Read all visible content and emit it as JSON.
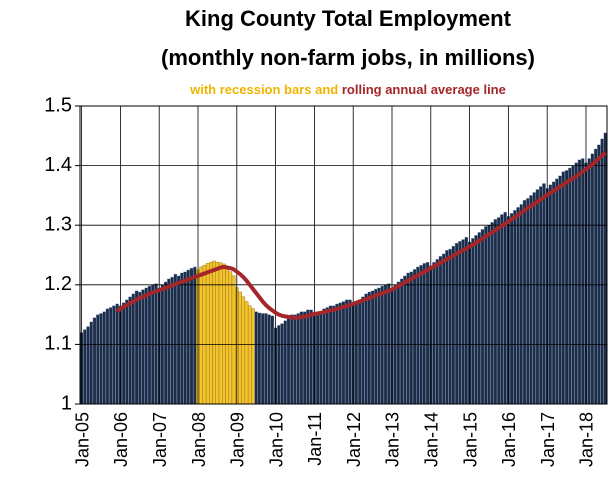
{
  "chart_data": {
    "type": "bar",
    "title": [
      "King County Total Employment",
      "(monthly non-farm jobs, in millions)"
    ],
    "subtitle": [
      "with recession bars and",
      "rolling annual average line"
    ],
    "subtitle_colors": [
      "#f0b400",
      "#a3262a"
    ],
    "categories": [
      "Jan-05",
      null,
      null,
      null,
      null,
      null,
      null,
      null,
      null,
      null,
      null,
      null,
      "Jan-06",
      null,
      null,
      null,
      null,
      null,
      null,
      null,
      null,
      null,
      null,
      null,
      "Jan-07",
      null,
      null,
      null,
      null,
      null,
      null,
      null,
      null,
      null,
      null,
      null,
      "Jan-08",
      null,
      null,
      null,
      null,
      null,
      null,
      null,
      null,
      null,
      null,
      null,
      "Jan-09",
      null,
      null,
      null,
      null,
      null,
      null,
      null,
      null,
      null,
      null,
      null,
      "Jan-10",
      null,
      null,
      null,
      null,
      null,
      null,
      null,
      null,
      null,
      null,
      null,
      "Jan-11",
      null,
      null,
      null,
      null,
      null,
      null,
      null,
      null,
      null,
      null,
      null,
      "Jan-12",
      null,
      null,
      null,
      null,
      null,
      null,
      null,
      null,
      null,
      null,
      null,
      "Jan-13",
      null,
      null,
      null,
      null,
      null,
      null,
      null,
      null,
      null,
      null,
      null,
      "Jan-14",
      null,
      null,
      null,
      null,
      null,
      null,
      null,
      null,
      null,
      null,
      null,
      "Jan-15",
      null,
      null,
      null,
      null,
      null,
      null,
      null,
      null,
      null,
      null,
      null,
      "Jan-16",
      null,
      null,
      null,
      null,
      null,
      null,
      null,
      null,
      null,
      null,
      null,
      "Jan-17",
      null,
      null,
      null,
      null,
      null,
      null,
      null,
      null,
      null,
      null,
      null,
      "Jan-18",
      null,
      null,
      null,
      null,
      null,
      null
    ],
    "series": [
      {
        "type": "bar",
        "color": "#1d2c47",
        "values": [
          1.12,
          1.125,
          1.13,
          1.138,
          1.145,
          1.15,
          1.152,
          1.155,
          1.16,
          1.162,
          1.165,
          1.168,
          1.165,
          1.17,
          1.175,
          1.18,
          1.185,
          1.19,
          1.188,
          1.192,
          1.195,
          1.198,
          1.2,
          1.202,
          1.195,
          1.2,
          1.205,
          1.21,
          1.213,
          1.218,
          1.215,
          1.22,
          1.222,
          1.225,
          1.228,
          1.23,
          1.225,
          1.23,
          1.233,
          1.236,
          1.238,
          1.24,
          1.238,
          1.237,
          1.235,
          1.23,
          1.222,
          1.215,
          1.195,
          1.188,
          1.18,
          1.172,
          1.165,
          1.16,
          1.155,
          1.153,
          1.152,
          1.152,
          1.15,
          1.148,
          1.128,
          1.132,
          1.135,
          1.14,
          1.145,
          1.15,
          1.15,
          1.152,
          1.155,
          1.155,
          1.158,
          1.158,
          1.148,
          1.152,
          1.155,
          1.16,
          1.162,
          1.165,
          1.165,
          1.168,
          1.17,
          1.172,
          1.175,
          1.175,
          1.17,
          1.172,
          1.175,
          1.18,
          1.185,
          1.188,
          1.19,
          1.193,
          1.195,
          1.198,
          1.2,
          1.202,
          1.195,
          1.2,
          1.205,
          1.21,
          1.215,
          1.22,
          1.222,
          1.226,
          1.23,
          1.233,
          1.236,
          1.238,
          1.232,
          1.238,
          1.243,
          1.248,
          1.252,
          1.258,
          1.26,
          1.265,
          1.27,
          1.273,
          1.276,
          1.28,
          1.272,
          1.278,
          1.283,
          1.288,
          1.293,
          1.298,
          1.3,
          1.305,
          1.31,
          1.313,
          1.318,
          1.322,
          1.315,
          1.32,
          1.325,
          1.33,
          1.335,
          1.342,
          1.345,
          1.35,
          1.355,
          1.36,
          1.365,
          1.37,
          1.362,
          1.368,
          1.373,
          1.378,
          1.383,
          1.39,
          1.392,
          1.396,
          1.4,
          1.405,
          1.41,
          1.412,
          1.405,
          1.412,
          1.42,
          1.428,
          1.435,
          1.445,
          1.455
        ],
        "colors": [
          "#1d2c47",
          "#1d2c47",
          "#1d2c47",
          "#1d2c47",
          "#1d2c47",
          "#1d2c47",
          "#1d2c47",
          "#1d2c47",
          "#1d2c47",
          "#1d2c47",
          "#1d2c47",
          "#1d2c47",
          "#1d2c47",
          "#1d2c47",
          "#1d2c47",
          "#1d2c47",
          "#1d2c47",
          "#1d2c47",
          "#1d2c47",
          "#1d2c47",
          "#1d2c47",
          "#1d2c47",
          "#1d2c47",
          "#1d2c47",
          "#1d2c47",
          "#1d2c47",
          "#1d2c47",
          "#1d2c47",
          "#1d2c47",
          "#1d2c47",
          "#1d2c47",
          "#1d2c47",
          "#1d2c47",
          "#1d2c47",
          "#1d2c47",
          "#1d2c47",
          "#f4c430",
          "#f4c430",
          "#f4c430",
          "#f4c430",
          "#f4c430",
          "#f4c430",
          "#f4c430",
          "#f4c430",
          "#f4c430",
          "#f4c430",
          "#f4c430",
          "#f4c430",
          "#f4c430",
          "#f4c430",
          "#f4c430",
          "#f4c430",
          "#f4c430",
          "#f4c430",
          "#1d2c47",
          "#1d2c47",
          "#1d2c47",
          "#1d2c47",
          "#1d2c47",
          "#1d2c47",
          "#1d2c47",
          "#1d2c47",
          "#1d2c47",
          "#1d2c47",
          "#1d2c47",
          "#1d2c47",
          "#1d2c47",
          "#1d2c47",
          "#1d2c47",
          "#1d2c47",
          "#1d2c47",
          "#1d2c47",
          "#1d2c47",
          "#1d2c47",
          "#1d2c47",
          "#1d2c47",
          "#1d2c47",
          "#1d2c47",
          "#1d2c47",
          "#1d2c47",
          "#1d2c47",
          "#1d2c47",
          "#1d2c47",
          "#1d2c47",
          "#1d2c47",
          "#1d2c47",
          "#1d2c47",
          "#1d2c47",
          "#1d2c47",
          "#1d2c47",
          "#1d2c47",
          "#1d2c47",
          "#1d2c47",
          "#1d2c47",
          "#1d2c47",
          "#1d2c47",
          "#1d2c47",
          "#1d2c47",
          "#1d2c47",
          "#1d2c47",
          "#1d2c47",
          "#1d2c47",
          "#1d2c47",
          "#1d2c47",
          "#1d2c47",
          "#1d2c47",
          "#1d2c47",
          "#1d2c47",
          "#1d2c47",
          "#1d2c47",
          "#1d2c47",
          "#1d2c47",
          "#1d2c47",
          "#1d2c47",
          "#1d2c47",
          "#1d2c47",
          "#1d2c47",
          "#1d2c47",
          "#1d2c47",
          "#1d2c47",
          "#1d2c47",
          "#1d2c47",
          "#1d2c47",
          "#1d2c47",
          "#1d2c47",
          "#1d2c47",
          "#1d2c47",
          "#1d2c47",
          "#1d2c47",
          "#1d2c47",
          "#1d2c47",
          "#1d2c47",
          "#1d2c47",
          "#1d2c47",
          "#1d2c47",
          "#1d2c47",
          "#1d2c47",
          "#1d2c47",
          "#1d2c47",
          "#1d2c47",
          "#1d2c47",
          "#1d2c47",
          "#1d2c47",
          "#1d2c47",
          "#1d2c47",
          "#1d2c47",
          "#1d2c47",
          "#1d2c47",
          "#1d2c47",
          "#1d2c47",
          "#1d2c47",
          "#1d2c47",
          "#1d2c47",
          "#1d2c47",
          "#1d2c47",
          "#1d2c47",
          "#1d2c47",
          "#1d2c47",
          "#1d2c47",
          "#1d2c47",
          "#1d2c47",
          "#1d2c47",
          "#1d2c47"
        ]
      },
      {
        "type": "line",
        "color": "#a3262a",
        "values": [
          null,
          null,
          null,
          null,
          null,
          null,
          null,
          null,
          null,
          null,
          null,
          1.155,
          1.16,
          1.163,
          1.166,
          1.169,
          1.172,
          1.175,
          1.178,
          1.18,
          1.182,
          1.185,
          1.187,
          1.189,
          1.191,
          1.193,
          1.195,
          1.197,
          1.199,
          1.201,
          1.203,
          1.205,
          1.207,
          1.209,
          1.211,
          1.213,
          1.215,
          1.217,
          1.219,
          1.221,
          1.223,
          1.225,
          1.227,
          1.229,
          1.23,
          1.229,
          1.228,
          1.226,
          1.222,
          1.218,
          1.213,
          1.207,
          1.2,
          1.193,
          1.186,
          1.179,
          1.172,
          1.166,
          1.161,
          1.157,
          1.153,
          1.15,
          1.148,
          1.147,
          1.146,
          1.145,
          1.145,
          1.145,
          1.146,
          1.147,
          1.148,
          1.15,
          1.151,
          1.152,
          1.153,
          1.154,
          1.156,
          1.157,
          1.158,
          1.16,
          1.161,
          1.163,
          1.164,
          1.166,
          1.168,
          1.17,
          1.172,
          1.174,
          1.176,
          1.178,
          1.18,
          1.182,
          1.184,
          1.186,
          1.188,
          1.19,
          1.192,
          1.195,
          1.198,
          1.201,
          1.204,
          1.207,
          1.21,
          1.213,
          1.216,
          1.219,
          1.222,
          1.225,
          1.228,
          1.231,
          1.234,
          1.237,
          1.24,
          1.243,
          1.246,
          1.249,
          1.252,
          1.255,
          1.258,
          1.261,
          1.264,
          1.267,
          1.271,
          1.274,
          1.278,
          1.281,
          1.285,
          1.288,
          1.292,
          1.295,
          1.299,
          1.302,
          1.306,
          1.31,
          1.313,
          1.317,
          1.321,
          1.325,
          1.329,
          1.332,
          1.336,
          1.34,
          1.343,
          1.347,
          1.351,
          1.354,
          1.358,
          1.361,
          1.365,
          1.368,
          1.372,
          1.375,
          1.379,
          1.382,
          1.386,
          1.39,
          1.394,
          1.398,
          1.402,
          1.407,
          1.412,
          1.417,
          1.422
        ]
      }
    ],
    "ylim": [
      1,
      1.5
    ],
    "yticks": [
      1,
      1.1,
      1.2,
      1.3,
      1.4,
      1.5
    ],
    "grid": true
  }
}
